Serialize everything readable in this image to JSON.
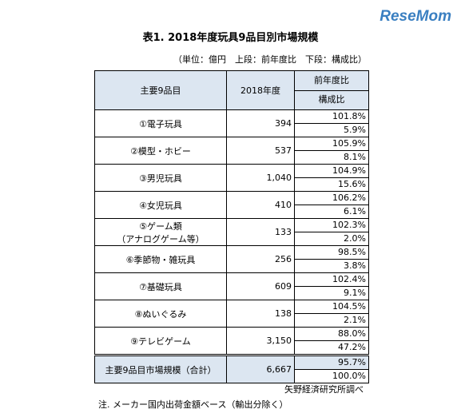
{
  "logo": "ReseMom",
  "title": "表1. 2018年度玩具9品目別市場規模",
  "unit_note": "（単位：億円　上段：前年度比　下段：構成比）",
  "table": {
    "header": {
      "item": "主要9品目",
      "year": "2018年度",
      "yoy": "前年度比",
      "share": "構成比"
    },
    "rows": [
      {
        "label": [
          "①電子玩具"
        ],
        "value": "394",
        "yoy": "101.8%",
        "share": "5.9%"
      },
      {
        "label": [
          "②模型・ホビー"
        ],
        "value": "537",
        "yoy": "105.9%",
        "share": "8.1%"
      },
      {
        "label": [
          "③男児玩具"
        ],
        "value": "1,040",
        "yoy": "104.9%",
        "share": "15.6%"
      },
      {
        "label": [
          "④女児玩具"
        ],
        "value": "410",
        "yoy": "106.2%",
        "share": "6.1%"
      },
      {
        "label": [
          "⑤ゲーム類",
          "（アナログゲーム等）"
        ],
        "value": "133",
        "yoy": "102.3%",
        "share": "2.0%"
      },
      {
        "label": [
          "⑥季節物・雑玩具"
        ],
        "value": "256",
        "yoy": "98.5%",
        "share": "3.8%"
      },
      {
        "label": [
          "⑦基礎玩具"
        ],
        "value": "609",
        "yoy": "102.4%",
        "share": "9.1%"
      },
      {
        "label": [
          "⑧ぬいぐるみ"
        ],
        "value": "138",
        "yoy": "104.5%",
        "share": "2.1%"
      },
      {
        "label": [
          "⑨テレビゲーム"
        ],
        "value": "3,150",
        "yoy": "88.0%",
        "share": "47.2%"
      }
    ],
    "total": {
      "label": [
        "主要9品目市場規模（合計）"
      ],
      "value": "6,667",
      "yoy": "95.7%",
      "share": "100.0%"
    }
  },
  "source": "矢野経済研究所調べ",
  "note": "注. メーカー国内出荷金額ベース（輸出分除く）"
}
